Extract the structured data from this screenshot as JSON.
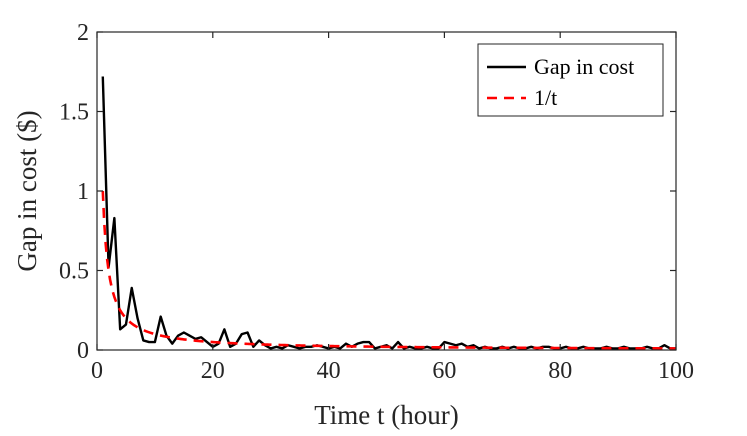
{
  "chart_data": {
    "type": "line",
    "title": "",
    "xlabel": "Time t (hour)",
    "ylabel": "Gap in cost ($)",
    "xlim": [
      0,
      100
    ],
    "ylim": [
      0,
      2
    ],
    "xticks": [
      0,
      20,
      40,
      60,
      80,
      100
    ],
    "yticks": [
      0,
      0.5,
      1,
      1.5,
      2
    ],
    "xtick_labels": [
      "0",
      "20",
      "40",
      "60",
      "80",
      "100"
    ],
    "ytick_labels": [
      "0",
      "0.5",
      "1",
      "1.5",
      "2"
    ],
    "grid": false,
    "legend": {
      "location": "top-right"
    },
    "series": [
      {
        "name": "Gap in cost",
        "color": "#000000",
        "style": "solid",
        "x": [
          1,
          2,
          3,
          4,
          5,
          6,
          7,
          8,
          9,
          10,
          11,
          12,
          13,
          14,
          15,
          16,
          17,
          18,
          19,
          20,
          21,
          22,
          23,
          24,
          25,
          26,
          27,
          28,
          29,
          30,
          31,
          32,
          33,
          34,
          35,
          36,
          37,
          38,
          39,
          40,
          41,
          42,
          43,
          44,
          45,
          46,
          47,
          48,
          49,
          50,
          51,
          52,
          53,
          54,
          55,
          56,
          57,
          58,
          59,
          60,
          61,
          62,
          63,
          64,
          65,
          66,
          67,
          68,
          69,
          70,
          71,
          72,
          73,
          74,
          75,
          76,
          77,
          78,
          79,
          80,
          81,
          82,
          83,
          84,
          85,
          86,
          87,
          88,
          89,
          90,
          91,
          92,
          93,
          94,
          95,
          96,
          97,
          98,
          99,
          100
        ],
        "values": [
          1.72,
          0.52,
          0.83,
          0.13,
          0.16,
          0.39,
          0.2,
          0.06,
          0.05,
          0.05,
          0.21,
          0.09,
          0.04,
          0.09,
          0.11,
          0.09,
          0.07,
          0.08,
          0.05,
          0.02,
          0.04,
          0.13,
          0.02,
          0.04,
          0.1,
          0.11,
          0.02,
          0.06,
          0.03,
          0.01,
          0.02,
          0.01,
          0.03,
          0.02,
          0.01,
          0.02,
          0.02,
          0.03,
          0.02,
          0.01,
          0.02,
          0.01,
          0.04,
          0.02,
          0.04,
          0.05,
          0.05,
          0.01,
          0.02,
          0.03,
          0.01,
          0.05,
          0.01,
          0.02,
          0.01,
          0.01,
          0.02,
          0.01,
          0.01,
          0.05,
          0.04,
          0.03,
          0.04,
          0.02,
          0.03,
          0.01,
          0.02,
          0.01,
          0.01,
          0.02,
          0.01,
          0.02,
          0.01,
          0.01,
          0.02,
          0.01,
          0.02,
          0.02,
          0.01,
          0.01,
          0.02,
          0.01,
          0.01,
          0.02,
          0.01,
          0.01,
          0.01,
          0.02,
          0.01,
          0.01,
          0.02,
          0.01,
          0.01,
          0.01,
          0.02,
          0.01,
          0.01,
          0.03,
          0.01,
          0.01
        ]
      },
      {
        "name": "1/t",
        "color": "#ff0000",
        "style": "dashed",
        "function": "1/t",
        "x_start": 1,
        "x_end": 100
      }
    ]
  }
}
